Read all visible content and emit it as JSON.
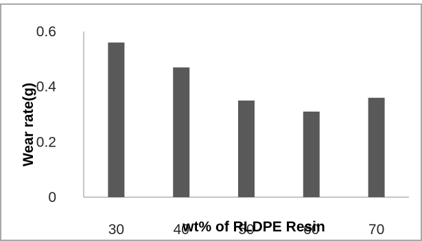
{
  "chart_data": {
    "type": "bar",
    "title": "",
    "xlabel": "wt% of RLDPE Resin",
    "ylabel": "Wear rate(g)",
    "categories": [
      "30",
      "40",
      "50",
      "60",
      "70"
    ],
    "values": [
      0.56,
      0.47,
      0.35,
      0.31,
      0.36
    ],
    "ylim": [
      0,
      0.6
    ],
    "yticks": [
      "0",
      "0.2",
      "0.4",
      "0.6"
    ],
    "grid": false,
    "legend": "none",
    "bar_color": "#595959"
  }
}
